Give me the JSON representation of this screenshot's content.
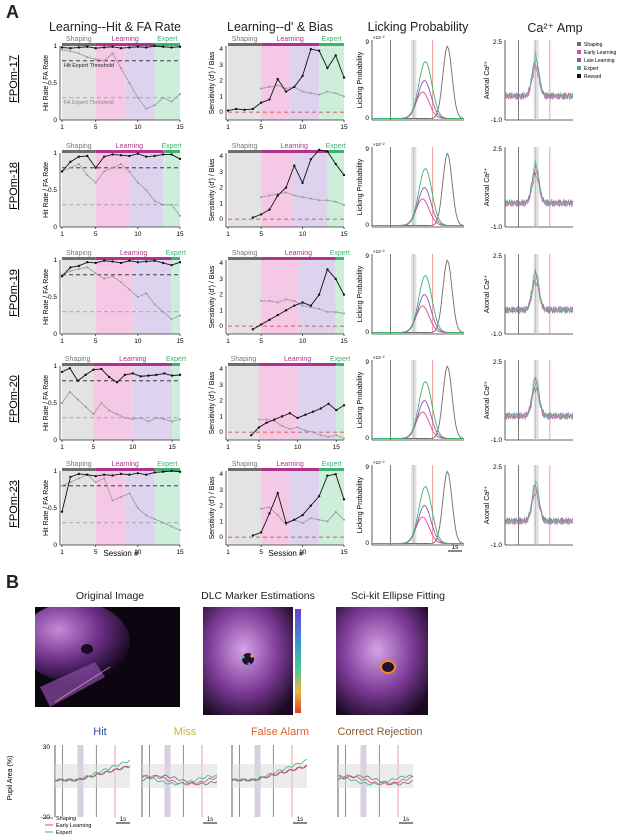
{
  "panel_a_label": "A",
  "panel_b_label": "B",
  "col_titles": [
    "Learning--Hit & FA Rate",
    "Learning--d' & Bias",
    "Licking Probability",
    "Ca²⁺ Amp"
  ],
  "phases": {
    "shaping": "Shaping",
    "learning": "Learning",
    "expert": "Expert"
  },
  "hit_threshold_label": "Hit Expert Threshold",
  "fa_threshold_label": "FA Expert Threshold",
  "ylabel_hit": "Hit Rate / FA Rate",
  "ylabel_dprime": "Sensitivity (d') / Bias",
  "ylabel_lick": "Licking Probability",
  "ylabel_ca": "Axonal Ca²⁺",
  "xlabel_session": "Session #",
  "lick_ymax": "9",
  "lick_exp": "×10⁻²",
  "ca_ytop": "2.5",
  "ca_ybot": "-1.0",
  "scale_1s": "1s",
  "legend_ca": [
    "Shaping",
    "Early Learning",
    "Late Learning",
    "Expert",
    "Reward"
  ],
  "colors": {
    "shaping": "#6e6e6e",
    "early": "#e0449a",
    "late": "#8a57b0",
    "expert": "#3cb371",
    "reward": "#111111",
    "shaping_bg": "#e3e3e3",
    "learning_bg": "#f5c9e6",
    "late_bg": "#ddd3ef",
    "expert_bg": "#cdeedb"
  },
  "rows": [
    {
      "mouse": "FPOm-17",
      "n_sessions": 15,
      "shaping_end": 5,
      "expert_start": 12,
      "xticks": [
        1,
        5,
        10,
        15
      ],
      "hit": [
        0.98,
        0.97,
        0.98,
        0.99,
        0.97,
        0.98,
        0.99,
        0.97,
        0.98,
        0.99,
        0.98,
        1.0,
        0.99,
        0.98,
        0.99
      ],
      "fa": [
        0.95,
        0.93,
        0.9,
        0.85,
        0.82,
        0.8,
        0.9,
        0.7,
        0.5,
        0.3,
        0.15,
        0.2,
        0.3,
        0.25,
        0.35
      ],
      "dprime": [
        0.1,
        0.2,
        0.15,
        0.2,
        0.6,
        0.8,
        2.1,
        1.3,
        1.6,
        2.3,
        4.0,
        3.9,
        2.8,
        3.6,
        2.2
      ],
      "bias": [
        null,
        null,
        null,
        null,
        1.5,
        1.6,
        1.7,
        1.5,
        1.6,
        1.3,
        1.2,
        1.1,
        1.3,
        1.2,
        1.0
      ]
    },
    {
      "mouse": "FPOm-18",
      "n_sessions": 15,
      "shaping_end": 5,
      "expert_start": 13,
      "xticks": [
        1,
        5,
        10,
        15
      ],
      "hit": [
        0.75,
        0.88,
        0.95,
        0.96,
        0.8,
        0.95,
        0.98,
        0.97,
        0.96,
        0.99,
        0.95,
        0.96,
        0.98,
        0.98,
        0.92
      ],
      "fa": [
        0.75,
        0.8,
        0.85,
        0.7,
        0.6,
        0.75,
        0.8,
        0.85,
        0.75,
        0.6,
        0.5,
        0.35,
        0.3,
        0.3,
        0.15
      ],
      "dprime": [
        null,
        null,
        null,
        0.1,
        0.3,
        0.6,
        1.5,
        2.0,
        3.4,
        2.3,
        3.8,
        4.4,
        4.3,
        3.5,
        2.8
      ],
      "bias": [
        null,
        null,
        null,
        null,
        1.4,
        1.5,
        1.6,
        1.7,
        1.5,
        1.4,
        1.3,
        1.2,
        1.2,
        1.1,
        0.9
      ]
    },
    {
      "mouse": "FPOm-19",
      "n_sessions": 15,
      "shaping_end": 5,
      "expert_start": 14,
      "xticks": [
        1,
        5,
        10,
        15
      ],
      "hit": [
        0.78,
        0.9,
        0.92,
        0.97,
        0.96,
        0.99,
        0.98,
        0.96,
        0.99,
        0.97,
        0.98,
        0.99,
        0.96,
        0.93,
        0.97
      ],
      "fa": [
        0.8,
        0.85,
        0.88,
        0.9,
        0.82,
        0.75,
        0.78,
        0.7,
        0.6,
        0.5,
        0.55,
        0.4,
        0.3,
        0.2,
        0.25
      ],
      "dprime": [
        null,
        null,
        null,
        -0.2,
        0.1,
        0.4,
        0.7,
        1.0,
        1.3,
        1.5,
        1.3,
        2.0,
        3.6,
        3.0,
        2.0
      ],
      "bias": [
        null,
        null,
        null,
        null,
        1.6,
        1.6,
        1.5,
        1.7,
        1.6,
        1.3,
        1.2,
        1.1,
        0.9,
        0.9,
        0.8
      ]
    },
    {
      "mouse": "FPOm-20",
      "n_sessions": 16,
      "shaping_end": 5,
      "expert_start": 15,
      "xticks": [
        1,
        5,
        10,
        15
      ],
      "hit": [
        0.92,
        0.97,
        0.8,
        0.88,
        0.95,
        0.96,
        0.85,
        0.78,
        0.88,
        0.9,
        0.86,
        0.87,
        0.88,
        0.9,
        0.87,
        0.88
      ],
      "fa": [
        0.5,
        0.65,
        0.55,
        0.45,
        0.35,
        0.5,
        0.4,
        0.35,
        0.3,
        0.28,
        0.3,
        0.25,
        0.3,
        0.28,
        0.25,
        0.28
      ],
      "dprime": [
        null,
        null,
        null,
        -0.2,
        0.3,
        0.6,
        0.8,
        1.0,
        1.2,
        0.9,
        1.1,
        1.3,
        1.5,
        1.8,
        1.4,
        1.7
      ],
      "bias": [
        null,
        null,
        null,
        null,
        0.8,
        0.8,
        0.7,
        0.4,
        0.2,
        0.3,
        0.1,
        0.0,
        -0.2,
        -0.3,
        -0.2,
        -0.4
      ]
    },
    {
      "mouse": "FPOm-23",
      "n_sessions": 15,
      "shaping_end": 5,
      "expert_start": 12,
      "xticks": [
        1,
        5,
        10,
        15
      ],
      "hit": [
        0.45,
        0.92,
        0.96,
        0.95,
        0.93,
        0.95,
        0.94,
        0.96,
        0.95,
        0.97,
        0.95,
        0.98,
        0.99,
        1.0,
        0.99
      ],
      "fa": [
        0.8,
        0.85,
        0.9,
        0.95,
        0.85,
        0.9,
        0.6,
        0.65,
        0.7,
        0.5,
        0.4,
        0.35,
        0.3,
        0.25,
        0.2
      ],
      "dprime": [
        null,
        null,
        null,
        0.1,
        0.3,
        1.5,
        2.8,
        0.9,
        1.1,
        1.4,
        2.0,
        2.6,
        3.9,
        4.0,
        2.4
      ],
      "bias": [
        null,
        null,
        null,
        null,
        1.8,
        1.9,
        1.4,
        0.8,
        1.1,
        0.9,
        1.2,
        1.1,
        1.0,
        1.6,
        1.1
      ]
    }
  ],
  "image_titles": [
    "Original Image",
    "DLC Marker Estimations",
    "Sci-kit Ellipse Fitting"
  ],
  "outcomes": [
    {
      "label": "Hit",
      "color": "#2b4aa8"
    },
    {
      "label": "Miss",
      "color": "#c9b43a"
    },
    {
      "label": "False Alarm",
      "color": "#e0632a"
    },
    {
      "label": "Correct Rejection",
      "color": "#8b5a2b"
    }
  ],
  "pupil_ylabel": "Pupil Area (%)",
  "pupil_ytop": "30",
  "pupil_ybot": "-20",
  "pupil_legend": [
    "Shaping",
    "Early Learning",
    "Expert"
  ]
}
